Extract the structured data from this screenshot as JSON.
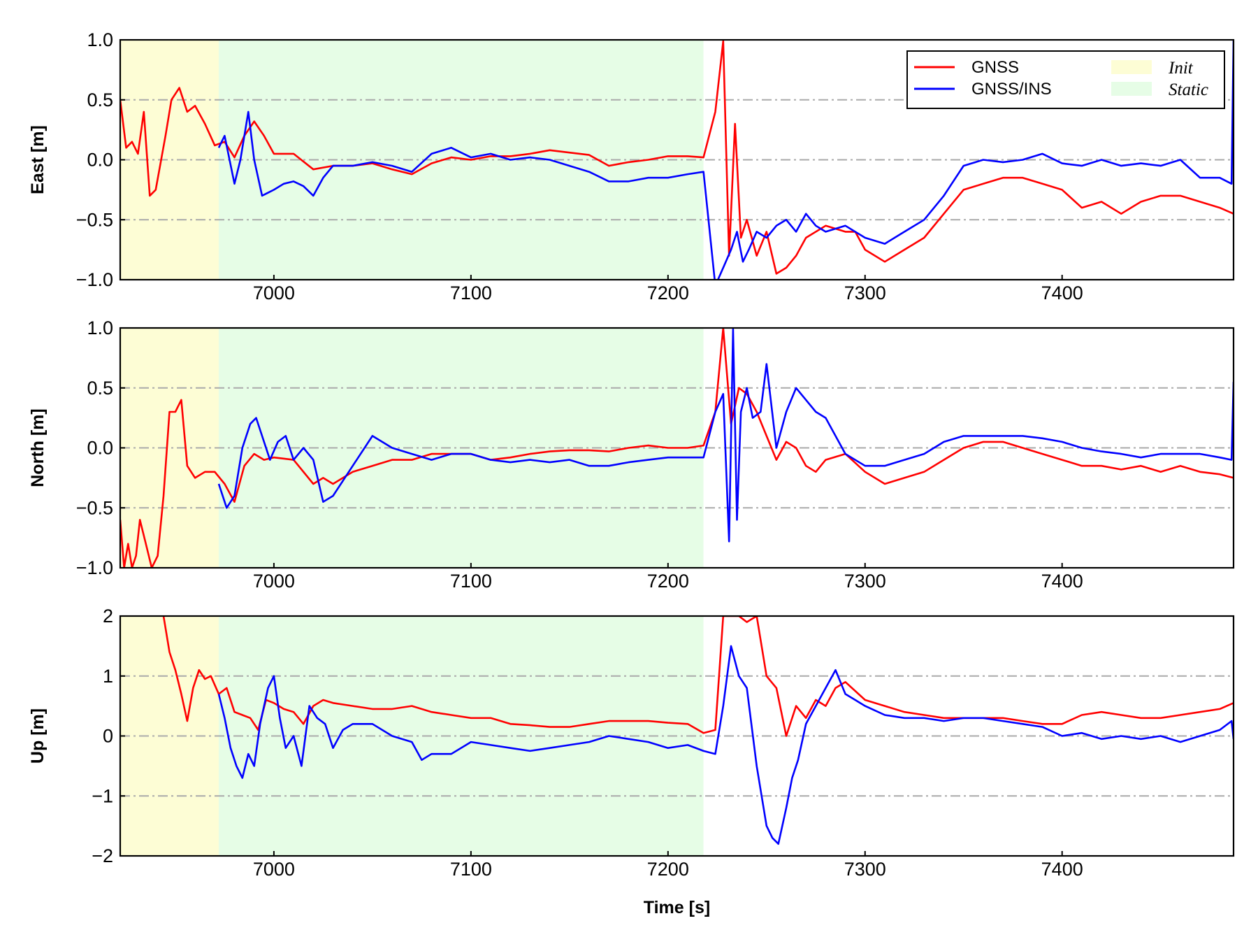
{
  "chart_data": [
    {
      "type": "line",
      "ylabel": "East [m]",
      "xlim": [
        6922,
        7487
      ],
      "ylim": [
        -1.0,
        1.0
      ],
      "yticks": [
        -1.0,
        -0.5,
        0.0,
        0.5,
        1.0
      ],
      "ytick_labels": [
        "−1.0",
        "−0.5",
        "0.0",
        "0.5",
        "1.0"
      ],
      "xticks": [
        7000,
        7100,
        7200,
        7300,
        7400
      ],
      "xtick_labels": [
        "7000",
        "7100",
        "7200",
        "7300",
        "7400"
      ],
      "grid": "dash-dot horizontal at y ticks",
      "series": [
        {
          "name": "GNSS",
          "color": "#ff0000",
          "x": [
            6922,
            6925,
            6928,
            6931,
            6934,
            6937,
            6940,
            6945,
            6948,
            6952,
            6956,
            6960,
            6965,
            6970,
            6975,
            6980,
            6985,
            6990,
            6995,
            7000,
            7010,
            7020,
            7030,
            7040,
            7050,
            7060,
            7070,
            7080,
            7090,
            7100,
            7110,
            7120,
            7130,
            7140,
            7150,
            7160,
            7170,
            7180,
            7190,
            7200,
            7210,
            7218,
            7224,
            7228,
            7231,
            7234,
            7237,
            7240,
            7245,
            7250,
            7255,
            7260,
            7265,
            7270,
            7280,
            7290,
            7295,
            7300,
            7310,
            7320,
            7330,
            7340,
            7350,
            7360,
            7370,
            7380,
            7390,
            7400,
            7410,
            7420,
            7430,
            7440,
            7450,
            7460,
            7470,
            7480,
            7487
          ],
          "values": [
            0.5,
            0.1,
            0.15,
            0.05,
            0.4,
            -0.3,
            -0.25,
            0.2,
            0.5,
            0.6,
            0.4,
            0.45,
            0.3,
            0.12,
            0.15,
            0.02,
            0.2,
            0.32,
            0.2,
            0.05,
            0.05,
            -0.08,
            -0.05,
            -0.05,
            -0.03,
            -0.08,
            -0.12,
            -0.03,
            0.02,
            0.0,
            0.03,
            0.03,
            0.05,
            0.08,
            0.06,
            0.04,
            -0.05,
            -0.02,
            0.0,
            0.03,
            0.03,
            0.02,
            0.4,
            0.99,
            -0.8,
            0.3,
            -0.65,
            -0.5,
            -0.8,
            -0.6,
            -0.95,
            -0.9,
            -0.8,
            -0.65,
            -0.55,
            -0.6,
            -0.6,
            -0.75,
            -0.85,
            -0.75,
            -0.65,
            -0.45,
            -0.25,
            -0.2,
            -0.15,
            -0.15,
            -0.2,
            -0.25,
            -0.4,
            -0.35,
            -0.45,
            -0.35,
            -0.3,
            -0.3,
            -0.35,
            -0.4,
            -0.45
          ]
        },
        {
          "name": "GNSS/INS",
          "color": "#0000ff",
          "x": [
            6972,
            6975,
            6980,
            6983,
            6987,
            6990,
            6994,
            7000,
            7005,
            7010,
            7015,
            7020,
            7025,
            7030,
            7040,
            7050,
            7060,
            7070,
            7080,
            7090,
            7100,
            7110,
            7120,
            7130,
            7140,
            7150,
            7160,
            7170,
            7180,
            7190,
            7200,
            7210,
            7218,
            7224,
            7228,
            7232,
            7235,
            7238,
            7241,
            7245,
            7250,
            7255,
            7260,
            7265,
            7270,
            7275,
            7280,
            7290,
            7300,
            7310,
            7320,
            7330,
            7340,
            7350,
            7360,
            7370,
            7380,
            7390,
            7400,
            7410,
            7420,
            7430,
            7440,
            7450,
            7460,
            7470,
            7480,
            7486,
            7487
          ],
          "values": [
            0.1,
            0.2,
            -0.2,
            0.0,
            0.4,
            0.0,
            -0.3,
            -0.25,
            -0.2,
            -0.18,
            -0.22,
            -0.3,
            -0.15,
            -0.05,
            -0.05,
            -0.02,
            -0.05,
            -0.1,
            0.05,
            0.1,
            0.02,
            0.05,
            0.0,
            0.02,
            0.0,
            -0.05,
            -0.1,
            -0.18,
            -0.18,
            -0.15,
            -0.15,
            -0.12,
            -0.1,
            -1.05,
            -0.9,
            -0.75,
            -0.6,
            -0.85,
            -0.75,
            -0.6,
            -0.65,
            -0.55,
            -0.5,
            -0.6,
            -0.45,
            -0.55,
            -0.6,
            -0.55,
            -0.65,
            -0.7,
            -0.6,
            -0.5,
            -0.3,
            -0.05,
            0.0,
            -0.02,
            0.0,
            0.05,
            -0.03,
            -0.05,
            0.0,
            -0.05,
            -0.03,
            -0.05,
            0.0,
            -0.15,
            -0.15,
            -0.2,
            1.0
          ]
        }
      ]
    },
    {
      "type": "line",
      "ylabel": "North [m]",
      "xlim": [
        6922,
        7487
      ],
      "ylim": [
        -1.0,
        1.0
      ],
      "yticks": [
        -1.0,
        -0.5,
        0.0,
        0.5,
        1.0
      ],
      "ytick_labels": [
        "−1.0",
        "−0.5",
        "0.0",
        "0.5",
        "1.0"
      ],
      "xticks": [
        7000,
        7100,
        7200,
        7300,
        7400
      ],
      "xtick_labels": [
        "7000",
        "7100",
        "7200",
        "7300",
        "7400"
      ],
      "grid": "dash-dot horizontal at y ticks",
      "series": [
        {
          "name": "GNSS",
          "color": "#ff0000",
          "x": [
            6922,
            6924,
            6926,
            6928,
            6930,
            6932,
            6935,
            6938,
            6941,
            6944,
            6947,
            6950,
            6953,
            6956,
            6960,
            6965,
            6970,
            6975,
            6980,
            6985,
            6990,
            6995,
            7000,
            7010,
            7020,
            7025,
            7030,
            7040,
            7050,
            7060,
            7070,
            7080,
            7090,
            7100,
            7110,
            7120,
            7130,
            7140,
            7150,
            7160,
            7170,
            7180,
            7190,
            7200,
            7210,
            7218,
            7224,
            7228,
            7232,
            7236,
            7240,
            7245,
            7250,
            7255,
            7260,
            7265,
            7270,
            7275,
            7280,
            7290,
            7300,
            7310,
            7320,
            7330,
            7340,
            7350,
            7360,
            7370,
            7380,
            7390,
            7400,
            7410,
            7420,
            7430,
            7440,
            7450,
            7460,
            7470,
            7480,
            7487
          ],
          "values": [
            -0.6,
            -1.0,
            -0.8,
            -1.0,
            -0.9,
            -0.6,
            -0.8,
            -1.0,
            -0.9,
            -0.4,
            0.3,
            0.3,
            0.4,
            -0.15,
            -0.25,
            -0.2,
            -0.2,
            -0.3,
            -0.45,
            -0.15,
            -0.05,
            -0.1,
            -0.08,
            -0.1,
            -0.3,
            -0.25,
            -0.3,
            -0.2,
            -0.15,
            -0.1,
            -0.1,
            -0.05,
            -0.05,
            -0.05,
            -0.1,
            -0.08,
            -0.05,
            -0.03,
            -0.02,
            -0.02,
            -0.03,
            0.0,
            0.02,
            0.0,
            0.0,
            0.02,
            0.3,
            1.0,
            0.2,
            0.5,
            0.45,
            0.3,
            0.1,
            -0.1,
            0.05,
            0.0,
            -0.15,
            -0.2,
            -0.1,
            -0.05,
            -0.2,
            -0.3,
            -0.25,
            -0.2,
            -0.1,
            0.0,
            0.05,
            0.05,
            0.0,
            -0.05,
            -0.1,
            -0.15,
            -0.15,
            -0.18,
            -0.15,
            -0.2,
            -0.15,
            -0.2,
            -0.22,
            -0.25
          ]
        },
        {
          "name": "GNSS/INS",
          "color": "#0000ff",
          "x": [
            6972,
            6976,
            6980,
            6984,
            6988,
            6991,
            6994,
            6998,
            7002,
            7006,
            7010,
            7015,
            7020,
            7025,
            7030,
            7040,
            7050,
            7060,
            7070,
            7080,
            7090,
            7100,
            7110,
            7120,
            7130,
            7140,
            7150,
            7160,
            7170,
            7180,
            7190,
            7200,
            7210,
            7218,
            7224,
            7228,
            7231,
            7233,
            7235,
            7237,
            7240,
            7243,
            7247,
            7250,
            7255,
            7260,
            7265,
            7270,
            7275,
            7280,
            7290,
            7300,
            7310,
            7320,
            7330,
            7340,
            7350,
            7360,
            7370,
            7380,
            7390,
            7400,
            7410,
            7420,
            7430,
            7440,
            7450,
            7460,
            7470,
            7480,
            7486,
            7487
          ],
          "values": [
            -0.3,
            -0.5,
            -0.4,
            0.0,
            0.2,
            0.25,
            0.1,
            -0.1,
            0.05,
            0.1,
            -0.1,
            0.0,
            -0.1,
            -0.45,
            -0.4,
            -0.15,
            0.1,
            0.0,
            -0.05,
            -0.1,
            -0.05,
            -0.05,
            -0.1,
            -0.12,
            -0.1,
            -0.12,
            -0.1,
            -0.15,
            -0.15,
            -0.12,
            -0.1,
            -0.08,
            -0.08,
            -0.08,
            0.3,
            0.45,
            -0.78,
            0.99,
            -0.6,
            0.3,
            0.5,
            0.25,
            0.3,
            0.7,
            0.0,
            0.3,
            0.5,
            0.4,
            0.3,
            0.25,
            -0.05,
            -0.15,
            -0.15,
            -0.1,
            -0.05,
            0.05,
            0.1,
            0.1,
            0.1,
            0.1,
            0.08,
            0.05,
            0.0,
            -0.03,
            -0.05,
            -0.08,
            -0.05,
            -0.05,
            -0.05,
            -0.08,
            -0.1,
            0.55
          ]
        }
      ]
    },
    {
      "type": "line",
      "ylabel": "Up [m]",
      "xlabel": "Time [s]",
      "xlim": [
        6922,
        7487
      ],
      "ylim": [
        -2,
        2
      ],
      "yticks": [
        -2,
        -1,
        0,
        1,
        2
      ],
      "ytick_labels": [
        "−2",
        "−1",
        "0",
        "1",
        "2"
      ],
      "xticks": [
        7000,
        7100,
        7200,
        7300,
        7400
      ],
      "xtick_labels": [
        "7000",
        "7100",
        "7200",
        "7300",
        "7400"
      ],
      "grid": "dash-dot horizontal at y ticks",
      "series": [
        {
          "name": "GNSS",
          "color": "#ff0000",
          "x": [
            6944,
            6947,
            6950,
            6953,
            6956,
            6959,
            6962,
            6965,
            6968,
            6972,
            6976,
            6980,
            6984,
            6988,
            6992,
            6996,
            7000,
            7005,
            7010,
            7015,
            7020,
            7025,
            7030,
            7040,
            7050,
            7060,
            7070,
            7080,
            7090,
            7100,
            7110,
            7120,
            7130,
            7140,
            7150,
            7160,
            7170,
            7180,
            7190,
            7200,
            7210,
            7218,
            7224,
            7228,
            7232,
            7236,
            7240,
            7245,
            7250,
            7255,
            7260,
            7265,
            7270,
            7275,
            7280,
            7285,
            7290,
            7300,
            7310,
            7320,
            7330,
            7340,
            7350,
            7360,
            7370,
            7380,
            7390,
            7400,
            7410,
            7420,
            7430,
            7440,
            7450,
            7460,
            7470,
            7480,
            7487
          ],
          "values": [
            2.0,
            1.4,
            1.1,
            0.7,
            0.25,
            0.8,
            1.1,
            0.95,
            1.0,
            0.7,
            0.8,
            0.4,
            0.35,
            0.3,
            0.1,
            0.6,
            0.55,
            0.45,
            0.4,
            0.2,
            0.5,
            0.6,
            0.55,
            0.5,
            0.45,
            0.45,
            0.5,
            0.4,
            0.35,
            0.3,
            0.3,
            0.2,
            0.18,
            0.15,
            0.15,
            0.2,
            0.25,
            0.25,
            0.25,
            0.22,
            0.2,
            0.05,
            0.1,
            2.0,
            2.0,
            2.0,
            1.9,
            2.0,
            1.0,
            0.8,
            0.0,
            0.5,
            0.3,
            0.6,
            0.5,
            0.8,
            0.9,
            0.6,
            0.5,
            0.4,
            0.35,
            0.3,
            0.3,
            0.3,
            0.3,
            0.25,
            0.2,
            0.2,
            0.35,
            0.4,
            0.35,
            0.3,
            0.3,
            0.35,
            0.4,
            0.45,
            0.55
          ]
        },
        {
          "name": "GNSS/INS",
          "color": "#0000ff",
          "x": [
            6972,
            6975,
            6978,
            6981,
            6984,
            6987,
            6990,
            6993,
            6997,
            7000,
            7003,
            7006,
            7010,
            7014,
            7018,
            7022,
            7026,
            7030,
            7035,
            7040,
            7050,
            7060,
            7070,
            7075,
            7080,
            7090,
            7100,
            7110,
            7120,
            7130,
            7140,
            7150,
            7160,
            7170,
            7180,
            7190,
            7200,
            7210,
            7218,
            7224,
            7228,
            7232,
            7236,
            7240,
            7245,
            7250,
            7253,
            7256,
            7260,
            7263,
            7266,
            7270,
            7275,
            7280,
            7285,
            7290,
            7295,
            7300,
            7310,
            7320,
            7330,
            7340,
            7350,
            7360,
            7370,
            7380,
            7390,
            7400,
            7410,
            7420,
            7430,
            7440,
            7450,
            7460,
            7470,
            7480,
            7486,
            7487
          ],
          "values": [
            0.7,
            0.3,
            -0.2,
            -0.5,
            -0.7,
            -0.3,
            -0.5,
            0.2,
            0.8,
            1.0,
            0.3,
            -0.2,
            0.0,
            -0.5,
            0.5,
            0.3,
            0.2,
            -0.2,
            0.1,
            0.2,
            0.2,
            0.0,
            -0.1,
            -0.4,
            -0.3,
            -0.3,
            -0.1,
            -0.15,
            -0.2,
            -0.25,
            -0.2,
            -0.15,
            -0.1,
            0.0,
            -0.05,
            -0.1,
            -0.2,
            -0.15,
            -0.25,
            -0.3,
            0.5,
            1.5,
            1.0,
            0.8,
            -0.5,
            -1.5,
            -1.7,
            -1.8,
            -1.2,
            -0.7,
            -0.4,
            0.2,
            0.5,
            0.8,
            1.1,
            0.7,
            0.6,
            0.5,
            0.35,
            0.3,
            0.3,
            0.25,
            0.3,
            0.3,
            0.25,
            0.2,
            0.15,
            0.0,
            0.05,
            -0.05,
            0.0,
            -0.05,
            0.0,
            -0.1,
            0.0,
            0.1,
            0.25,
            -0.05
          ]
        }
      ]
    }
  ],
  "shaded_regions": [
    {
      "name": "Init",
      "x_start": 6922,
      "x_end": 6972,
      "color": "#fdfdd5"
    },
    {
      "name": "Static",
      "x_start": 6972,
      "x_end": 7218,
      "color": "#e6fde6"
    }
  ],
  "legend": {
    "position": "top-right",
    "entries": [
      {
        "label": "GNSS",
        "kind": "line",
        "color": "#ff0000"
      },
      {
        "label": "GNSS/INS",
        "kind": "line",
        "color": "#0000ff"
      },
      {
        "label": "Init",
        "kind": "patch",
        "color": "#fdfdd5"
      },
      {
        "label": "Static",
        "kind": "patch",
        "color": "#e6fde6"
      }
    ]
  }
}
